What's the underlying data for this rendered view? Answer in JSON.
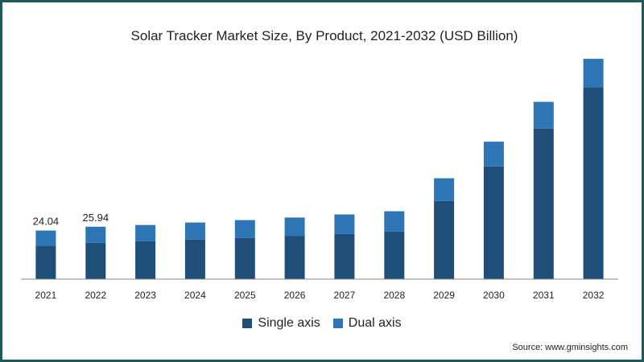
{
  "chart_data": {
    "type": "bar",
    "stacked": true,
    "title": "Solar Tracker Market Size, By Product, 2021-2032 (USD Billion)",
    "categories": [
      "2021",
      "2022",
      "2023",
      "2024",
      "2025",
      "2026",
      "2027",
      "2028",
      "2029",
      "2030",
      "2031",
      "2032"
    ],
    "series": [
      {
        "name": "Single axis",
        "color": "#1f4e79",
        "values": [
          16.6,
          18.0,
          18.8,
          19.6,
          20.4,
          21.3,
          22.4,
          23.6,
          38.7,
          55.8,
          74.5,
          95.0
        ]
      },
      {
        "name": "Dual axis",
        "color": "#2e75b6",
        "values": [
          7.44,
          7.94,
          8.0,
          8.4,
          8.8,
          9.2,
          9.6,
          10.0,
          11.2,
          12.2,
          13.2,
          14.0
        ]
      }
    ],
    "data_labels": [
      {
        "category": "2021",
        "text": "24.04"
      },
      {
        "category": "2022",
        "text": "25.94"
      }
    ],
    "ylim": [
      0,
      115
    ],
    "grid": false,
    "legend_position": "bottom"
  },
  "source": "Source: www.gminsights.com"
}
